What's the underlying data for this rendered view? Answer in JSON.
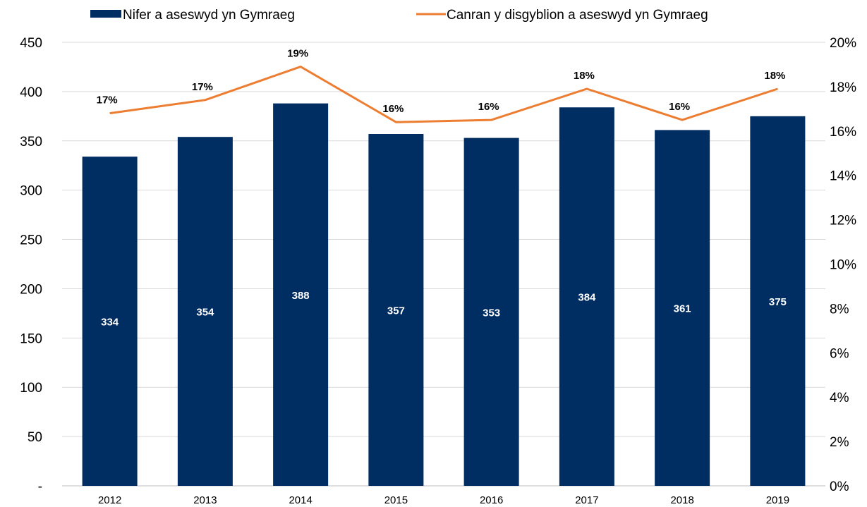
{
  "chart_data": {
    "type": "bar",
    "categories": [
      "2012",
      "2013",
      "2014",
      "2015",
      "2016",
      "2017",
      "2018",
      "2019"
    ],
    "series": [
      {
        "name": "Nifer a aseswyd yn Gymraeg",
        "type": "bar",
        "axis": "left",
        "color": "#002D62",
        "values": [
          334,
          354,
          388,
          357,
          353,
          384,
          361,
          375
        ],
        "labels": [
          "334",
          "354",
          "388",
          "357",
          "353",
          "384",
          "361",
          "375"
        ]
      },
      {
        "name": "Canran y disgyblion a aseswyd yn Gymraeg",
        "type": "line",
        "axis": "right",
        "color": "#ED7D31",
        "values": [
          16.8,
          17.4,
          18.9,
          16.4,
          16.5,
          17.9,
          16.5,
          17.9
        ],
        "labels": [
          "17%",
          "17%",
          "19%",
          "16%",
          "16%",
          "18%",
          "16%",
          "18%"
        ]
      }
    ],
    "y_left": {
      "ylim": [
        0,
        450
      ],
      "ticks": [
        0,
        50,
        100,
        150,
        200,
        250,
        300,
        350,
        400,
        450
      ],
      "tick_labels": [
        "-",
        "50",
        "100",
        "150",
        "200",
        "250",
        "300",
        "350",
        "400",
        "450"
      ]
    },
    "y_right": {
      "ylim": [
        0,
        20
      ],
      "ticks": [
        0,
        2,
        4,
        6,
        8,
        10,
        12,
        14,
        16,
        18,
        20
      ],
      "tick_labels": [
        "0%",
        "2%",
        "4%",
        "6%",
        "8%",
        "10%",
        "12%",
        "14%",
        "16%",
        "18%",
        "20%"
      ]
    },
    "grid": true,
    "legend": "top"
  }
}
